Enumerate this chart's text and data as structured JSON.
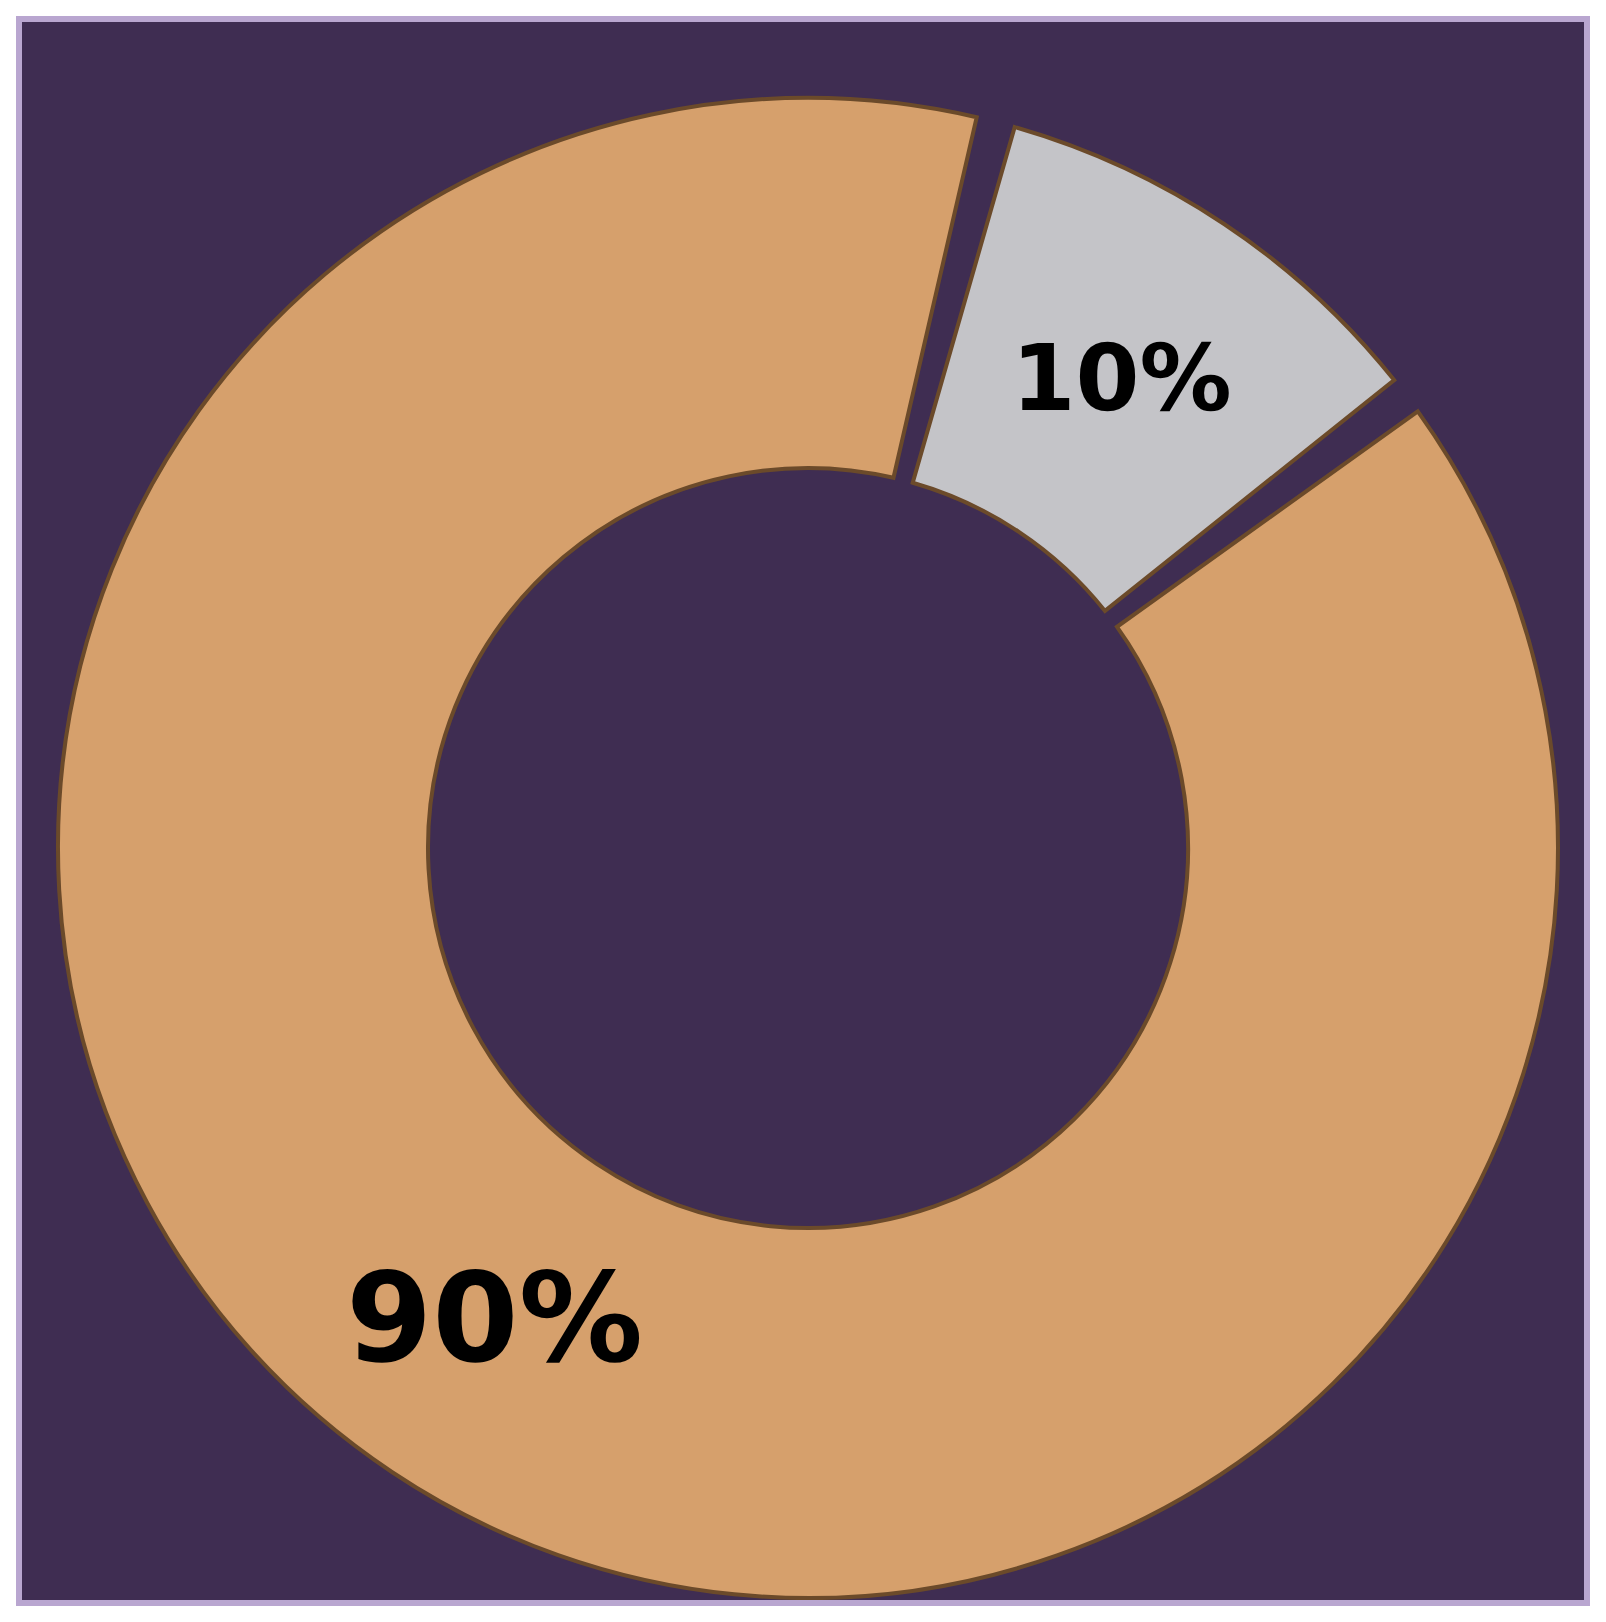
{
  "chart_data": {
    "type": "donut",
    "categories": [
      null,
      null
    ],
    "values": [
      10,
      90
    ],
    "colors": [
      "#c4c4c8",
      "#d6a06c"
    ],
    "value_labels": [
      "10%",
      "90%"
    ]
  }
}
